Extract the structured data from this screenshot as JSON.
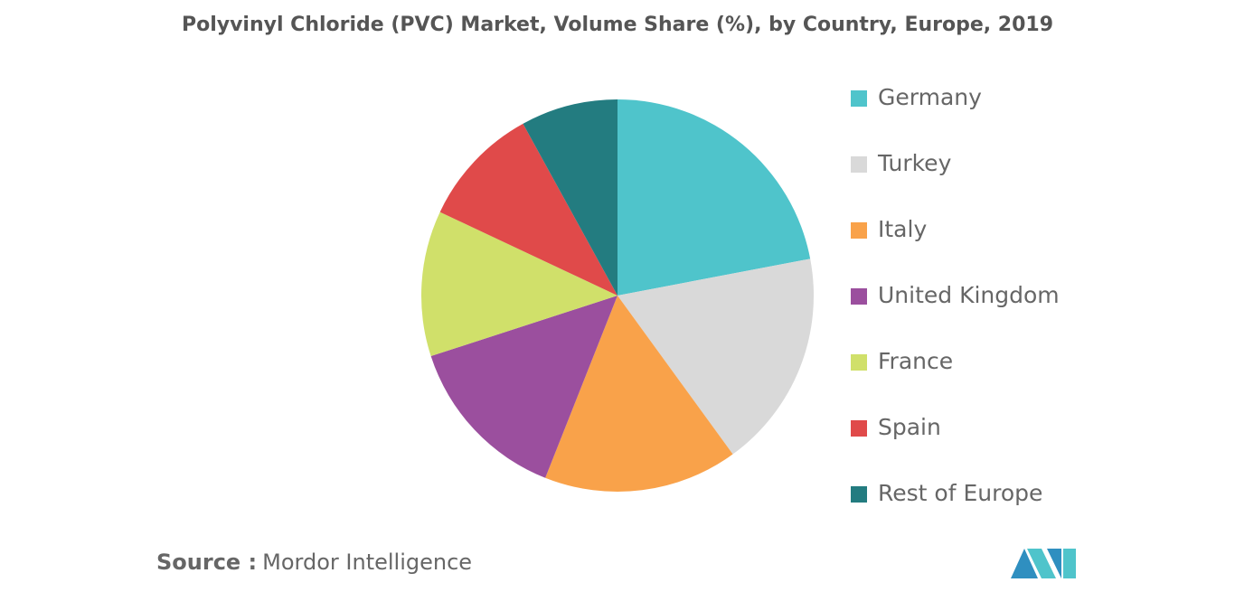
{
  "chart_data": {
    "type": "pie",
    "title": "Polyvinyl Chloride (PVC) Market, Volume Share (%), by Country, Europe, 2019",
    "categories": [
      "Germany",
      "Turkey",
      "Italy",
      "United Kingdom",
      "France",
      "Spain",
      "Rest of Europe"
    ],
    "values": [
      22,
      18,
      16,
      14,
      12,
      10,
      8
    ],
    "colors": [
      "#4fc4cb",
      "#d9d9d9",
      "#f9a24a",
      "#9b4f9e",
      "#d0e06a",
      "#e04a4a",
      "#237c80"
    ],
    "legend_position": "right"
  },
  "source_label": "Source :",
  "source": "Mordor Intelligence"
}
